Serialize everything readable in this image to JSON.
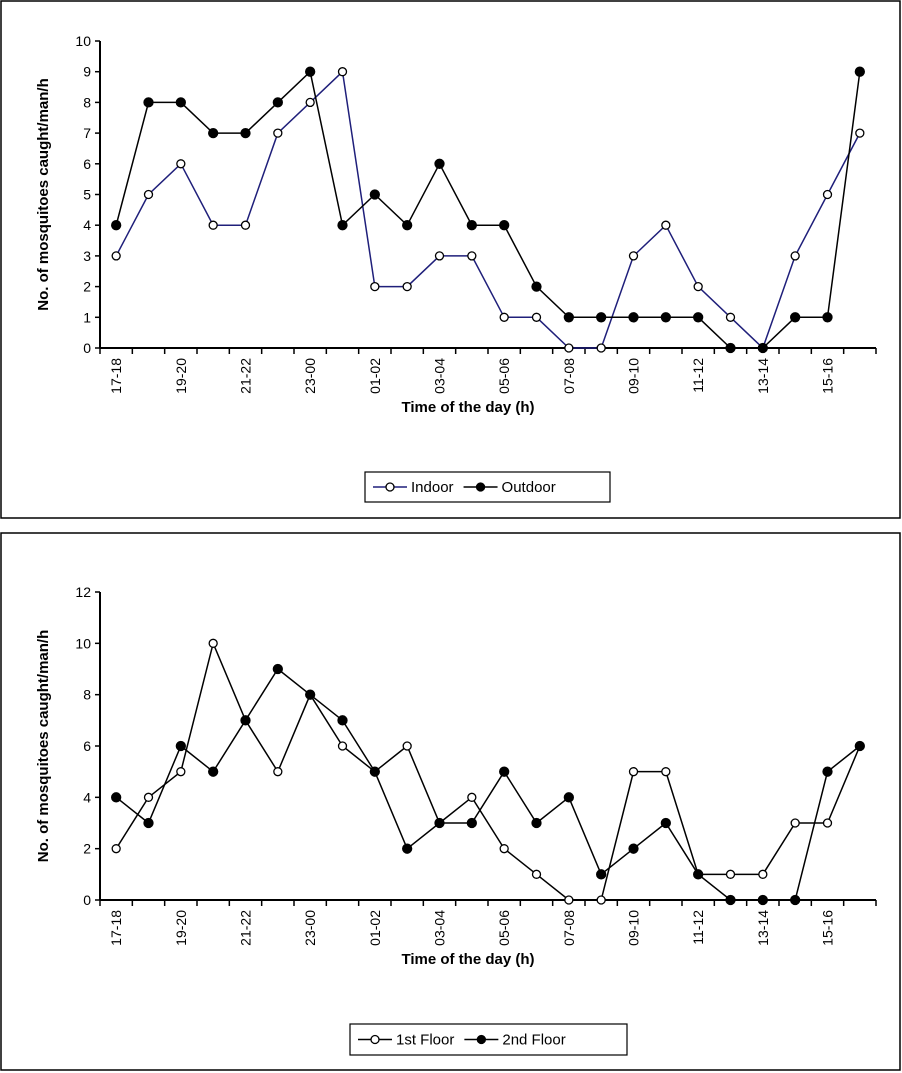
{
  "chart_data": [
    {
      "type": "line",
      "categories": [
        "17-18",
        "18-19",
        "19-20",
        "20-21",
        "21-22",
        "22-23",
        "23-00",
        "00-01",
        "01-02",
        "02-03",
        "03-04",
        "04-05",
        "05-06",
        "06-07",
        "07-08",
        "08-09",
        "09-10",
        "10-11",
        "11-12",
        "12-13",
        "13-14",
        "14-15",
        "15-16",
        "16-17"
      ],
      "tick_labels": [
        "17-18",
        "19-20",
        "21-22",
        "23-00",
        "01-02",
        "03-04",
        "05-06",
        "07-08",
        "09-10",
        "11-12",
        "13-14",
        "15-16"
      ],
      "xlabel": "Time of the day (h)",
      "ylabel": "No. of mosquitoes caught/man/h",
      "ylim": [
        0,
        10
      ],
      "yticks": [
        0,
        1,
        2,
        3,
        4,
        5,
        6,
        7,
        8,
        9,
        10
      ],
      "grid": false,
      "legend": "bottom",
      "series": [
        {
          "name": "Indoor",
          "color": "#1f1f7a",
          "marker": "open-circle",
          "values": [
            3,
            5,
            6,
            4,
            4,
            7,
            8,
            9,
            2,
            2,
            3,
            3,
            1,
            1,
            0,
            0,
            3,
            4,
            2,
            1,
            0,
            3,
            5,
            7
          ]
        },
        {
          "name": "Outdoor",
          "color": "#000000",
          "marker": "filled-circle",
          "values": [
            4,
            8,
            8,
            7,
            7,
            8,
            9,
            4,
            5,
            4,
            6,
            4,
            4,
            2,
            1,
            1,
            1,
            1,
            1,
            0,
            0,
            1,
            1,
            9
          ]
        }
      ]
    },
    {
      "type": "line",
      "categories": [
        "17-18",
        "18-19",
        "19-20",
        "20-21",
        "21-22",
        "22-23",
        "23-00",
        "00-01",
        "01-02",
        "02-03",
        "03-04",
        "04-05",
        "05-06",
        "06-07",
        "07-08",
        "08-09",
        "09-10",
        "10-11",
        "11-12",
        "12-13",
        "13-14",
        "14-15",
        "15-16",
        "16-17"
      ],
      "tick_labels": [
        "17-18",
        "19-20",
        "21-22",
        "23-00",
        "01-02",
        "03-04",
        "05-06",
        "07-08",
        "09-10",
        "11-12",
        "13-14",
        "15-16"
      ],
      "xlabel": "Time of the day (h)",
      "ylabel": "No. of mosquitoes caught/man/h",
      "ylim": [
        0,
        12
      ],
      "yticks": [
        0,
        2,
        4,
        6,
        8,
        10,
        12
      ],
      "grid": false,
      "legend": "bottom",
      "series": [
        {
          "name": "1st Floor",
          "color": "#000000",
          "marker": "open-circle",
          "values": [
            2,
            4,
            5,
            10,
            7,
            5,
            8,
            6,
            5,
            6,
            3,
            4,
            2,
            1,
            0,
            0,
            5,
            5,
            1,
            1,
            1,
            3,
            3,
            6
          ]
        },
        {
          "name": "2nd Floor",
          "color": "#000000",
          "marker": "filled-circle",
          "values": [
            4,
            3,
            6,
            5,
            7,
            9,
            8,
            7,
            5,
            2,
            3,
            3,
            5,
            3,
            4,
            1,
            2,
            3,
            1,
            0,
            0,
            0,
            5,
            6
          ]
        }
      ]
    }
  ]
}
